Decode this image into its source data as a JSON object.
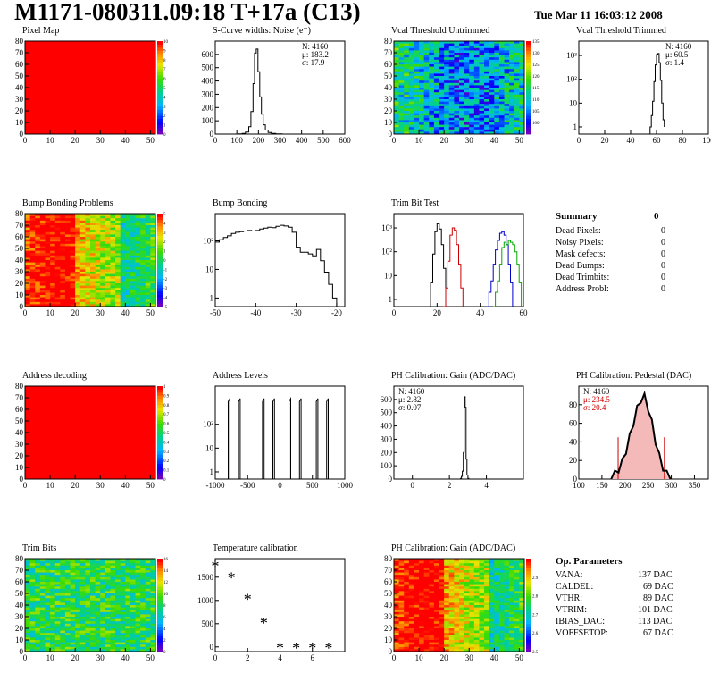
{
  "title": "M1171-080311.09:18 T+17a (C13)",
  "timestamp": "Tue Mar 11 16:03:12 2008",
  "chart_data": [
    {
      "id": "pixel-map",
      "type": "heatmap",
      "title": "Pixel Map",
      "xlim": [
        0,
        52
      ],
      "ylim": [
        0,
        80
      ],
      "xticks": [
        0,
        10,
        20,
        30,
        40,
        50
      ],
      "yticks": [
        0,
        10,
        20,
        30,
        40,
        50,
        60,
        70,
        80
      ],
      "fill": "#ff0000",
      "zlim": [
        0,
        10
      ],
      "zticks": [
        0,
        1,
        2,
        3,
        4,
        5,
        6,
        7,
        8,
        9,
        10
      ],
      "colorbar": "rainbow"
    },
    {
      "id": "scurve-noise",
      "type": "line",
      "title": "S-Curve widths: Noise (e⁻)",
      "xlim": [
        0,
        600
      ],
      "ylim": [
        0,
        700
      ],
      "xticks": [
        0,
        100,
        200,
        300,
        400,
        500,
        600
      ],
      "yticks": [
        0,
        100,
        200,
        300,
        400,
        500,
        600
      ],
      "stats": [
        "N: 4160",
        "μ: 183.2",
        "σ: 17.9"
      ],
      "x": [
        95,
        110,
        125,
        140,
        155,
        165,
        175,
        182,
        190,
        198,
        206,
        214,
        222,
        232,
        245,
        260,
        280,
        310
      ],
      "y": [
        0,
        2,
        5,
        15,
        55,
        170,
        380,
        610,
        640,
        470,
        280,
        150,
        70,
        30,
        12,
        5,
        2,
        0
      ]
    },
    {
      "id": "vcal-untrimmed",
      "type": "heatmap",
      "title": "Vcal Threshold Untrimmed",
      "xlim": [
        0,
        52
      ],
      "ylim": [
        0,
        80
      ],
      "xticks": [
        0,
        10,
        20,
        30,
        40,
        50
      ],
      "yticks": [
        0,
        10,
        20,
        30,
        40,
        50,
        60,
        70,
        80
      ],
      "zlim": [
        95,
        135
      ],
      "zticks": [
        100,
        105,
        110,
        115,
        120,
        125,
        130,
        135
      ],
      "colorbar": "rainbow"
    },
    {
      "id": "vcal-trimmed",
      "type": "line",
      "title": "Vcal Threshold Trimmed",
      "xlim": [
        0,
        100
      ],
      "ylim": [
        0.5,
        4000
      ],
      "yscale": "log",
      "xticks": [
        0,
        20,
        40,
        60,
        80,
        100
      ],
      "yticks": [
        1,
        10,
        100,
        1000
      ],
      "ytick_labels": [
        "1",
        "10",
        "10²",
        "10³"
      ],
      "stats": [
        "N: 4160",
        "μ: 60.5",
        "σ: 1.4"
      ],
      "x": [
        55,
        56,
        57,
        58,
        59,
        60,
        61,
        62,
        63,
        64,
        65,
        66
      ],
      "y": [
        1,
        3,
        12,
        80,
        400,
        1100,
        1200,
        500,
        90,
        10,
        2,
        1
      ]
    },
    {
      "id": "bump-bonding-problems",
      "type": "heatmap",
      "title": "Bump Bonding Problems",
      "xlim": [
        0,
        52
      ],
      "ylim": [
        0,
        80
      ],
      "xticks": [
        0,
        10,
        20,
        30,
        40,
        50
      ],
      "yticks": [
        0,
        10,
        20,
        30,
        40,
        50,
        60,
        70,
        80
      ],
      "zlim": [
        -5,
        5
      ],
      "zticks": [
        -5,
        -4,
        -3,
        -2,
        -1,
        0,
        1,
        2,
        3,
        4,
        5
      ],
      "colorbar": "rainbow"
    },
    {
      "id": "bump-bonding",
      "type": "line",
      "title": "Bump Bonding",
      "xlim": [
        -50,
        -18
      ],
      "ylim": [
        0.5,
        900
      ],
      "yscale": "log",
      "xticks": [
        -50,
        -40,
        -30,
        -20
      ],
      "yticks": [
        1,
        10,
        100
      ],
      "ytick_labels": [
        "1",
        "10",
        "10²"
      ],
      "x": [
        -50,
        -49,
        -48,
        -47,
        -46,
        -45,
        -44,
        -43,
        -42,
        -41,
        -40,
        -39,
        -38,
        -37,
        -36,
        -35,
        -34,
        -33,
        -32,
        -31,
        -30,
        -29,
        -28,
        -27,
        -26,
        -25,
        -24,
        -23,
        -22,
        -21,
        -20
      ],
      "y": [
        90,
        110,
        130,
        150,
        180,
        200,
        210,
        220,
        230,
        220,
        230,
        260,
        280,
        300,
        290,
        320,
        350,
        330,
        300,
        200,
        60,
        40,
        40,
        35,
        30,
        50,
        20,
        8,
        3,
        1,
        0.5
      ]
    },
    {
      "id": "trim-bit-test",
      "type": "line",
      "title": "Trim Bit Test",
      "xlim": [
        0,
        60
      ],
      "ylim": [
        0.5,
        4000
      ],
      "yscale": "log",
      "xticks": [
        0,
        20,
        40,
        60
      ],
      "yticks": [
        1,
        10,
        100,
        1000
      ],
      "ytick_labels": [
        "1",
        "10",
        "10²",
        "10³"
      ],
      "series": [
        {
          "color": "#000000",
          "x": [
            16,
            17,
            18,
            19,
            20,
            21,
            22,
            23,
            24
          ],
          "y": [
            0.5,
            5,
            80,
            700,
            1500,
            900,
            200,
            20,
            1
          ]
        },
        {
          "color": "#cc0000",
          "x": [
            23,
            24,
            25,
            26,
            27,
            28,
            29,
            30,
            31,
            32
          ],
          "y": [
            0.5,
            3,
            40,
            500,
            1000,
            800,
            200,
            30,
            3,
            0.5
          ]
        },
        {
          "color": "#0000cc",
          "x": [
            43,
            44,
            45,
            46,
            47,
            48,
            49,
            50,
            51,
            52,
            53,
            54,
            55
          ],
          "y": [
            0.5,
            2,
            6,
            30,
            120,
            300,
            600,
            700,
            500,
            200,
            30,
            5,
            0.5
          ]
        },
        {
          "color": "#00aa00",
          "x": [
            46,
            47,
            48,
            49,
            50,
            51,
            52,
            53,
            54,
            55,
            56,
            57,
            58,
            59
          ],
          "y": [
            0.5,
            2,
            6,
            30,
            150,
            250,
            200,
            300,
            250,
            200,
            100,
            30,
            5,
            0.5
          ]
        }
      ]
    },
    {
      "id": "address-decoding",
      "type": "heatmap",
      "title": "Address decoding",
      "xlim": [
        0,
        52
      ],
      "ylim": [
        0,
        80
      ],
      "xticks": [
        0,
        10,
        20,
        30,
        40,
        50
      ],
      "yticks": [
        0,
        10,
        20,
        30,
        40,
        50,
        60,
        70,
        80
      ],
      "fill": "#ff0000",
      "zlim": [
        0,
        1
      ],
      "zticks": [
        0,
        0.1,
        0.2,
        0.3,
        0.4,
        0.5,
        0.6,
        0.7,
        0.8,
        0.9,
        1
      ],
      "colorbar": "rainbow"
    },
    {
      "id": "address-levels",
      "type": "line",
      "title": "Address Levels",
      "xlim": [
        -1000,
        1000
      ],
      "ylim": [
        0.5,
        4000
      ],
      "yscale": "log",
      "xticks": [
        -1000,
        -500,
        0,
        500,
        1000
      ],
      "yticks": [
        1,
        10,
        100
      ],
      "ytick_labels": [
        "1",
        "10",
        "10²"
      ],
      "peaks": [
        -800,
        -640,
        -270,
        -110,
        140,
        300,
        560,
        720
      ]
    },
    {
      "id": "ph-gain",
      "type": "line",
      "title": "PH Calibration: Gain (ADC/DAC)",
      "xlim": [
        -1,
        6
      ],
      "ylim": [
        0,
        700
      ],
      "xticks": [
        0,
        2,
        4
      ],
      "yticks": [
        0,
        100,
        200,
        300,
        400,
        500,
        600
      ],
      "stats": [
        "N: 4160",
        "μ: 2.82",
        "σ: 0.07"
      ],
      "x": [
        2.55,
        2.6,
        2.65,
        2.7,
        2.75,
        2.8,
        2.85,
        2.9,
        2.95,
        3.0,
        3.05
      ],
      "y": [
        0,
        5,
        20,
        60,
        200,
        620,
        540,
        150,
        30,
        5,
        0
      ]
    },
    {
      "id": "ph-pedestal",
      "type": "line",
      "title": "PH Calibration: Pedestal (DAC)",
      "xlim": [
        100,
        380
      ],
      "ylim": [
        0,
        100
      ],
      "xticks": [
        100,
        150,
        200,
        250,
        300,
        350
      ],
      "yticks": [
        0,
        20,
        40,
        60,
        80
      ],
      "stats": [
        "N: 4160",
        "μ: 234.5",
        "σ: 20.4"
      ],
      "fit_range": [
        185,
        285
      ],
      "x": [
        170,
        178,
        186,
        194,
        202,
        210,
        218,
        226,
        234,
        242,
        250,
        258,
        266,
        274,
        282,
        290,
        298
      ],
      "y": [
        2,
        5,
        10,
        18,
        30,
        45,
        60,
        75,
        85,
        88,
        76,
        60,
        40,
        24,
        12,
        5,
        2
      ]
    },
    {
      "id": "trim-bits",
      "type": "heatmap",
      "title": "Trim Bits",
      "xlim": [
        0,
        52
      ],
      "ylim": [
        0,
        80
      ],
      "xticks": [
        0,
        10,
        20,
        30,
        40,
        50
      ],
      "yticks": [
        0,
        10,
        20,
        30,
        40,
        50,
        60,
        70,
        80
      ],
      "zlim": [
        0,
        16
      ],
      "zticks": [
        0,
        2,
        4,
        6,
        8,
        10,
        12,
        14,
        16
      ],
      "colorbar": "rainbow"
    },
    {
      "id": "temperature-calibration",
      "type": "scatter",
      "title": "Temperature calibration",
      "xlim": [
        0,
        8
      ],
      "ylim": [
        -100,
        1900
      ],
      "xticks": [
        0,
        2,
        4,
        6
      ],
      "yticks": [
        0,
        500,
        1000,
        1500
      ],
      "x": [
        0,
        1,
        2,
        3,
        4,
        5,
        6,
        7
      ],
      "y": [
        1760,
        1510,
        1040,
        530,
        0,
        0,
        0,
        0
      ]
    },
    {
      "id": "ph-gain-map",
      "type": "heatmap",
      "title": "PH Calibration: Gain (ADC/DAC)",
      "xlim": [
        0,
        52
      ],
      "ylim": [
        0,
        80
      ],
      "xticks": [
        0,
        10,
        20,
        30,
        40,
        50
      ],
      "yticks": [
        0,
        10,
        20,
        30,
        40,
        50,
        60,
        70,
        80
      ],
      "zlim": [
        2.5,
        3.0
      ],
      "zticks": [
        2.5,
        2.6,
        2.7,
        2.8,
        2.9
      ],
      "colorbar": "rainbow"
    }
  ],
  "summary": {
    "heading": "Summary",
    "heading_value": "0",
    "rows": [
      {
        "label": "Dead Pixels:",
        "value": "0"
      },
      {
        "label": "Noisy Pixels:",
        "value": "0"
      },
      {
        "label": "Mask defects:",
        "value": "0"
      },
      {
        "label": "Dead Bumps:",
        "value": "0"
      },
      {
        "label": "Dead Trimbits:",
        "value": "0"
      },
      {
        "label": "Address Probl:",
        "value": "0"
      }
    ]
  },
  "op_params": {
    "heading": "Op. Parameters",
    "rows": [
      {
        "label": "VANA:",
        "value": "137 DAC"
      },
      {
        "label": "CALDEL:",
        "value": "69 DAC"
      },
      {
        "label": "VTHR:",
        "value": "89 DAC"
      },
      {
        "label": "VTRIM:",
        "value": "101 DAC"
      },
      {
        "label": "IBIAS_DAC:",
        "value": "113 DAC"
      },
      {
        "label": "VOFFSETOP:",
        "value": "67 DAC"
      }
    ]
  }
}
